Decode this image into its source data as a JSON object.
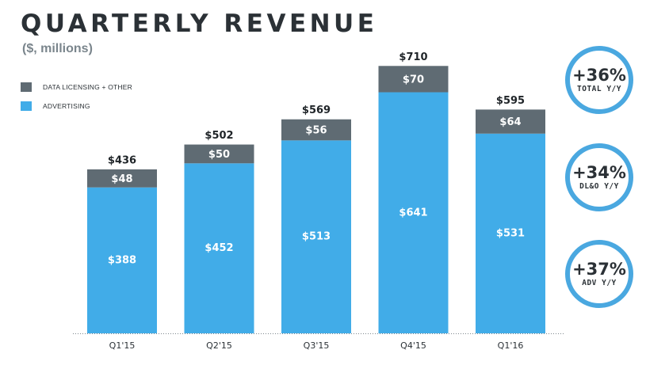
{
  "header": {
    "title": "QUARTERLY REVENUE",
    "subtitle": "($, millions)"
  },
  "legend": [
    {
      "label": "DATA LICENSING + OTHER",
      "color": "#5f6b73"
    },
    {
      "label": "ADVERTISING",
      "color": "#41ace8"
    }
  ],
  "badges": [
    {
      "value": "+36%",
      "label": "TOTAL Y/Y"
    },
    {
      "value": "+34%",
      "label": "DL&O Y/Y"
    },
    {
      "value": "+37%",
      "label": "ADV Y/Y"
    }
  ],
  "chart_data": {
    "type": "bar",
    "stacked": true,
    "title": "QUARTERLY REVENUE",
    "subtitle": "($, millions)",
    "categories": [
      "Q1'15",
      "Q2'15",
      "Q3'15",
      "Q4'15",
      "Q1'16"
    ],
    "series": [
      {
        "name": "ADVERTISING",
        "values": [
          388,
          452,
          513,
          641,
          531
        ],
        "color": "#41ace8",
        "labels": [
          "$388",
          "$452",
          "$513",
          "$641",
          "$531"
        ]
      },
      {
        "name": "DATA LICENSING + OTHER",
        "values": [
          48,
          50,
          56,
          70,
          64
        ],
        "color": "#5f6b73",
        "labels": [
          "$48",
          "$50",
          "$56",
          "$70",
          "$64"
        ]
      }
    ],
    "totals": [
      436,
      502,
      569,
      710,
      595
    ],
    "total_labels": [
      "$436",
      "$502",
      "$569",
      "$710",
      "$595"
    ],
    "ylim": [
      0,
      800
    ],
    "grid": false,
    "legend_position": "top-left",
    "baseline_style": "dotted"
  }
}
